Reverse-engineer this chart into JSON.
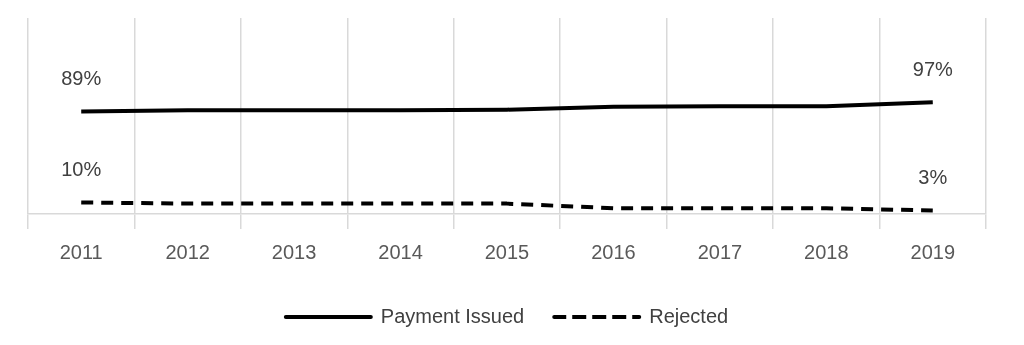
{
  "chart_data": {
    "type": "line",
    "categories": [
      "2011",
      "2012",
      "2013",
      "2014",
      "2015",
      "2016",
      "2017",
      "2018",
      "2019"
    ],
    "series": [
      {
        "name": "Payment Issued",
        "color": "#000000",
        "line_style": "solid",
        "values": [
          89,
          90,
          90,
          90,
          90.5,
          93,
          93.5,
          93.5,
          97
        ],
        "value_labels": [
          "89%",
          null,
          null,
          null,
          null,
          null,
          null,
          null,
          "97%"
        ]
      },
      {
        "name": "Rejected",
        "color": "#000000",
        "line_style": "dashed",
        "values": [
          10,
          9,
          9,
          9,
          9,
          5,
          5,
          5,
          3
        ],
        "value_labels": [
          "10%",
          null,
          null,
          null,
          null,
          null,
          null,
          null,
          "3%"
        ]
      }
    ],
    "ylim": [
      0,
      170
    ],
    "grid": "x",
    "legend": "bottom",
    "marker": "none",
    "tick_labels": "x"
  }
}
